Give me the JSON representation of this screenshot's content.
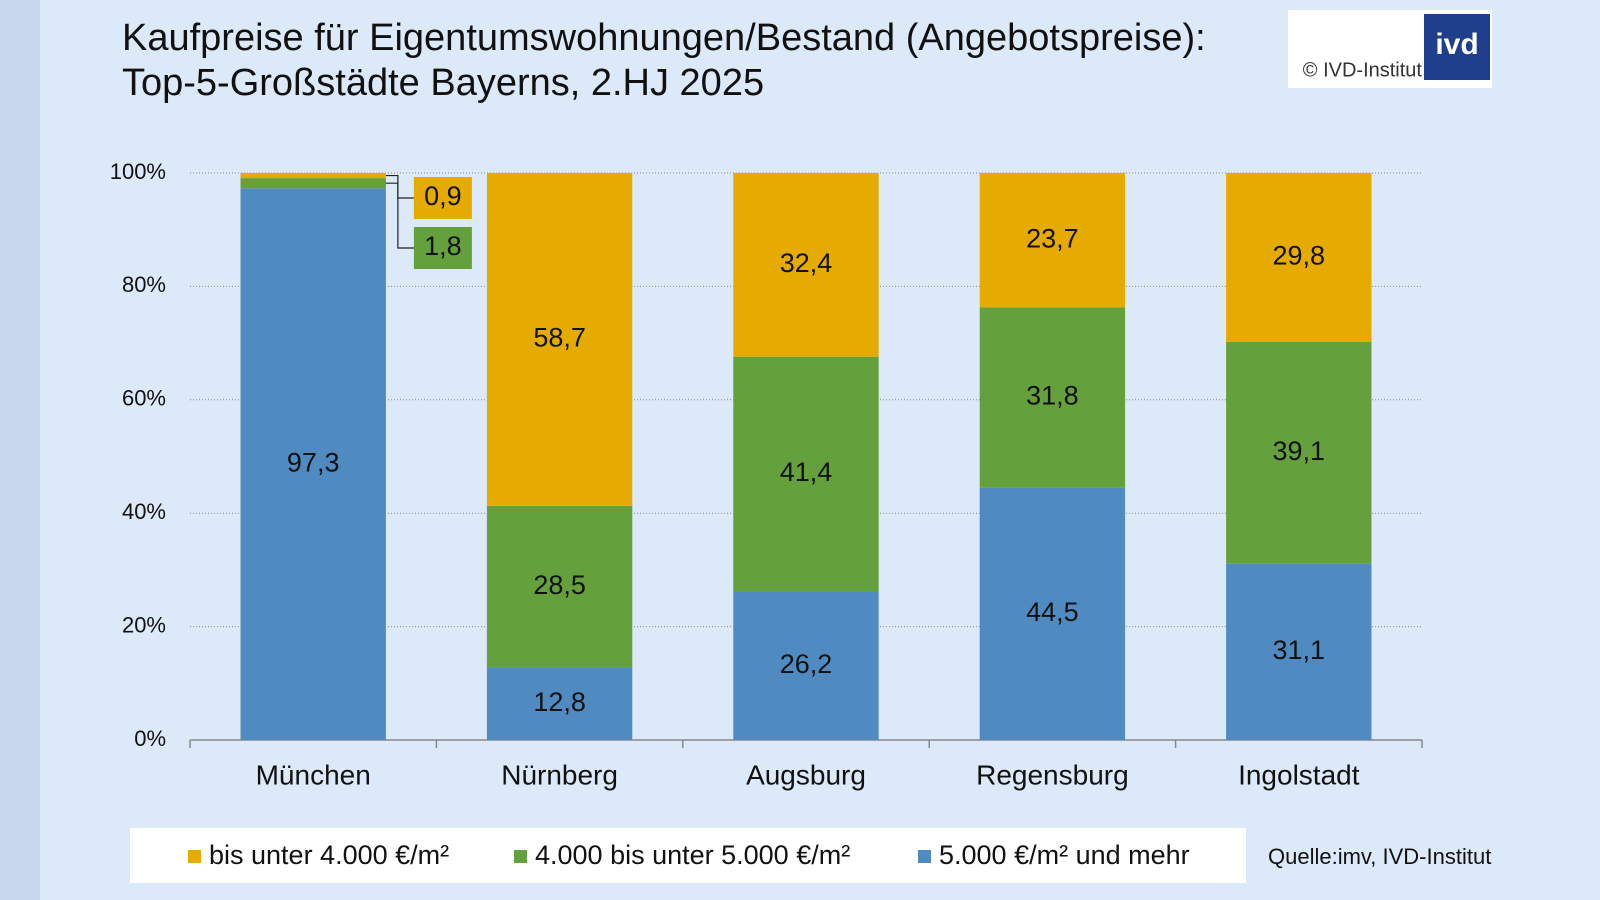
{
  "chart_data": {
    "type": "stacked_bar",
    "title": "Kaufpreise für Eigentumswohnungen/Bestand (Angebotspreise):",
    "subtitle": "Top-5-Großstädte Bayerns, 2.HJ 2025",
    "logo_text": "ivd",
    "copyright": "© IVD-Institut",
    "source": "Quelle:imv, IVD-Institut",
    "categories": [
      "München",
      "Nürnberg",
      "Augsburg",
      "Regensburg",
      "Ingolstadt"
    ],
    "series": [
      {
        "name": "5.000 €/m² und mehr",
        "color": "#4f8bc0",
        "values": [
          97.3,
          12.8,
          26.2,
          44.5,
          31.1
        ],
        "value_labels": [
          "97,3",
          "12,8",
          "26,2",
          "44,5",
          "31,1"
        ]
      },
      {
        "name": "4.000 bis unter 5.000 €/m²",
        "color": "#64a03c",
        "values": [
          1.8,
          28.5,
          41.4,
          31.8,
          39.1
        ],
        "value_labels": [
          "1,8",
          "28,5",
          "41,4",
          "31,8",
          "39,1"
        ]
      },
      {
        "name": "bis unter 4.000 €/m²",
        "color": "#e5ab00",
        "values": [
          0.9,
          58.7,
          32.4,
          23.7,
          29.8
        ],
        "value_labels": [
          "0,9",
          "58,7",
          "32,4",
          "23,7",
          "29,8"
        ]
      }
    ],
    "ylim": [
      0,
      100
    ],
    "yticks": [
      {
        "value": 0,
        "label": "0%"
      },
      {
        "value": 20,
        "label": "20%"
      },
      {
        "value": 40,
        "label": "40%"
      },
      {
        "value": 60,
        "label": "60%"
      },
      {
        "value": 80,
        "label": "80%"
      },
      {
        "value": 100,
        "label": "100%"
      }
    ],
    "grid": true,
    "legend": "bottom"
  }
}
